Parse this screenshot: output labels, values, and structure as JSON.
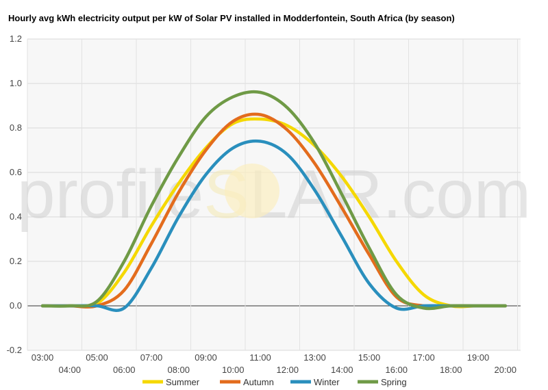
{
  "chart_data": {
    "type": "line",
    "title": "Hourly avg kWh electricity output per kW of Solar PV installed in Modderfontein, South Africa (by season)",
    "watermark": [
      "profile",
      "S",
      "LAR.com"
    ],
    "x": [
      "03:00",
      "04:00",
      "05:00",
      "06:00",
      "07:00",
      "08:00",
      "09:00",
      "10:00",
      "11:00",
      "12:00",
      "13:00",
      "14:00",
      "15:00",
      "16:00",
      "17:00",
      "18:00",
      "19:00",
      "20:00"
    ],
    "ylim": [
      -0.2,
      1.2
    ],
    "yticks": [
      "1.2",
      "1.0",
      "0.8",
      "0.6",
      "0.4",
      "0.2",
      "0.0",
      "-0.2"
    ],
    "grid": true,
    "legend_position": "bottom",
    "series": [
      {
        "name": "Summer",
        "color": "#f5d800",
        "values": [
          0,
          0,
          0.01,
          0.15,
          0.36,
          0.55,
          0.71,
          0.82,
          0.84,
          0.81,
          0.72,
          0.58,
          0.4,
          0.2,
          0.05,
          0.0,
          0,
          0
        ]
      },
      {
        "name": "Autumn",
        "color": "#e36c1d",
        "values": [
          0,
          0,
          0,
          0.07,
          0.28,
          0.51,
          0.7,
          0.83,
          0.86,
          0.79,
          0.64,
          0.44,
          0.23,
          0.04,
          0,
          0,
          0,
          0
        ]
      },
      {
        "name": "Winter",
        "color": "#2a8fbd",
        "values": [
          0,
          0,
          0,
          -0.01,
          0.17,
          0.4,
          0.59,
          0.71,
          0.74,
          0.68,
          0.52,
          0.31,
          0.1,
          -0.01,
          0,
          0,
          0,
          0
        ]
      },
      {
        "name": "Spring",
        "color": "#6f9a46",
        "values": [
          0,
          0,
          0.02,
          0.2,
          0.45,
          0.67,
          0.85,
          0.94,
          0.96,
          0.89,
          0.73,
          0.5,
          0.26,
          0.05,
          -0.01,
          0,
          0,
          0
        ]
      }
    ]
  }
}
